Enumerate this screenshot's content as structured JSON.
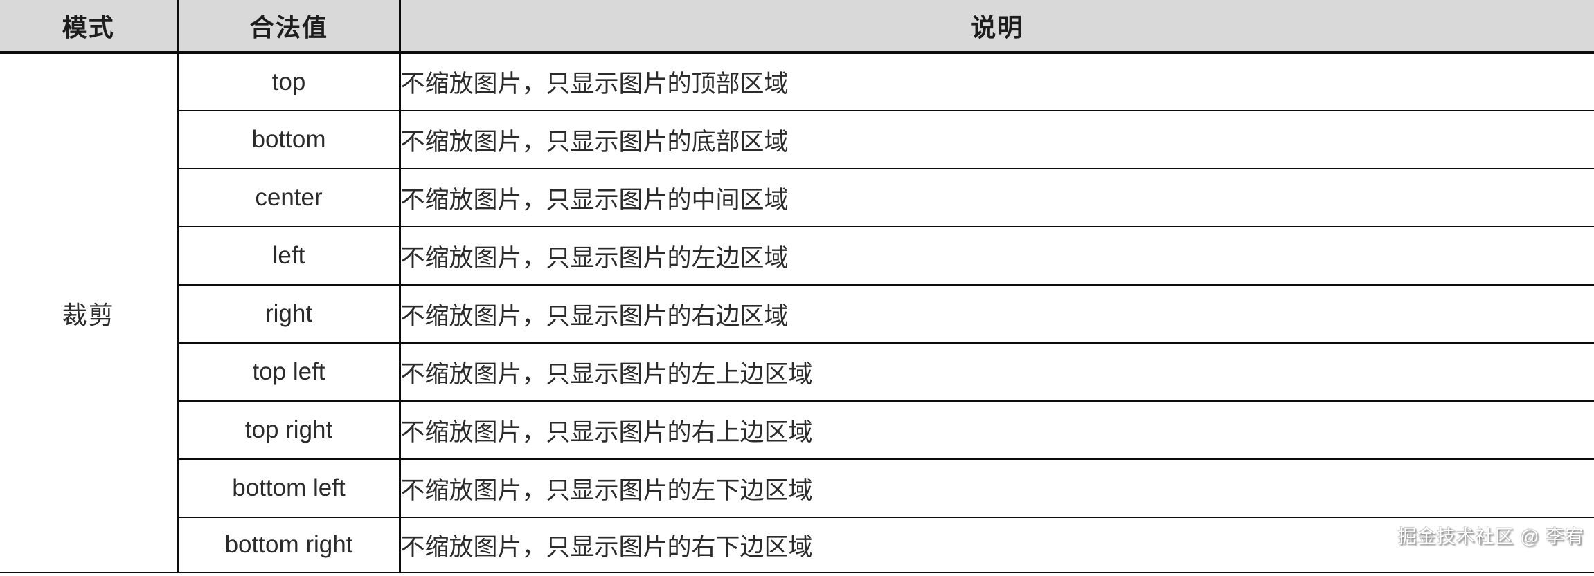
{
  "table": {
    "headers": [
      "模式",
      "合法值",
      "说明"
    ],
    "mode_group": "裁剪",
    "rows": [
      {
        "value": "top",
        "description": "不缩放图片，只显示图片的顶部区域"
      },
      {
        "value": "bottom",
        "description": "不缩放图片，只显示图片的底部区域"
      },
      {
        "value": "center",
        "description": "不缩放图片，只显示图片的中间区域"
      },
      {
        "value": "left",
        "description": "不缩放图片，只显示图片的左边区域"
      },
      {
        "value": "right",
        "description": "不缩放图片，只显示图片的右边区域"
      },
      {
        "value": "top left",
        "description": "不缩放图片，只显示图片的左上边区域"
      },
      {
        "value": "top right",
        "description": "不缩放图片，只显示图片的右上边区域"
      },
      {
        "value": "bottom left",
        "description": "不缩放图片，只显示图片的左下边区域"
      },
      {
        "value": "bottom right",
        "description": "不缩放图片，只显示图片的右下边区域"
      }
    ]
  },
  "watermark": "掘金技术社区 @ 李宥",
  "colors": {
    "header_bg": "#d9d9d9",
    "border": "#0c0c0c",
    "text": "#2a2a2a",
    "body_bg": "#ffffff"
  }
}
